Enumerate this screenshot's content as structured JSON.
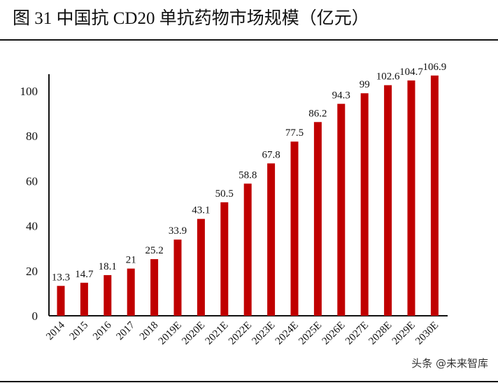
{
  "chart_data": {
    "type": "bar",
    "title": "图 31 中国抗 CD20 单抗药物市场规模（亿元）",
    "categories": [
      "2014",
      "2015",
      "2016",
      "2017",
      "2018",
      "2019E",
      "2020E",
      "2021E",
      "2022E",
      "2023E",
      "2024E",
      "2025E",
      "2026E",
      "2027E",
      "2028E",
      "2029E",
      "2030E"
    ],
    "values": [
      13.3,
      14.7,
      18.1,
      21,
      25.2,
      33.9,
      43.1,
      50.5,
      58.8,
      67.8,
      77.5,
      86.2,
      94.3,
      99,
      102.6,
      104.7,
      106.9
    ],
    "data_labels": [
      "13.3",
      "14.7",
      "18.1",
      "21",
      "25.2",
      "33.9",
      "43.1",
      "50.5",
      "58.8",
      "67.8",
      "77.5",
      "86.2",
      "94.3",
      "99",
      "102.6",
      "104.7",
      "106.9"
    ],
    "yticks": [
      "0",
      "20",
      "40",
      "60",
      "80",
      "100"
    ],
    "ylim": [
      0,
      110
    ],
    "grid": false,
    "bar_color": "#C00000",
    "xlabel": "",
    "ylabel": ""
  },
  "watermark": "头条 @未来智库"
}
